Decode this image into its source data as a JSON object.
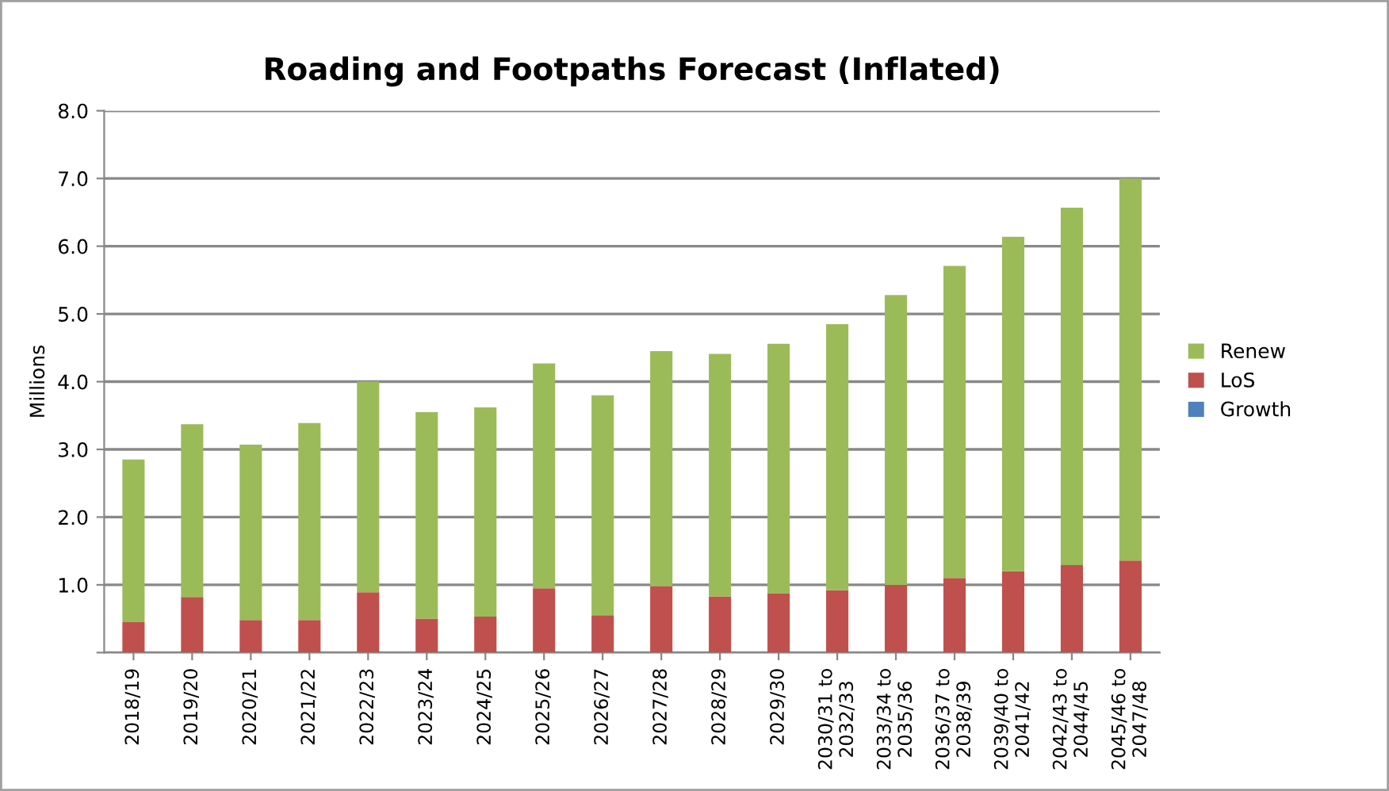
{
  "chart_data": {
    "type": "bar",
    "title": "Roading and Footpaths Forecast (Inflated)",
    "ylabel": "Millions",
    "stacked": true,
    "categories": [
      "2018/19",
      "2019/20",
      "2020/21",
      "2021/22",
      "2022/23",
      "2023/24",
      "2024/25",
      "2025/26",
      "2026/27",
      "2027/28",
      "2028/29",
      "2029/30",
      "2030/31 to\n2032/33",
      "2033/34 to\n2035/36",
      "2036/37 to\n2038/39",
      "2039/40 to\n2041/42",
      "2042/43 to\n2044/45",
      "2045/46 to\n2047/48"
    ],
    "series": [
      {
        "name": "Growth",
        "color": "#4f81bd",
        "values": [
          0,
          0,
          0,
          0,
          0,
          0,
          0,
          0,
          0,
          0,
          0,
          0,
          0,
          0,
          0,
          0,
          0,
          0
        ]
      },
      {
        "name": "LoS",
        "color": "#c0504d",
        "values": [
          0.45,
          0.82,
          0.48,
          0.48,
          0.89,
          0.5,
          0.53,
          0.95,
          0.55,
          0.98,
          0.83,
          0.87,
          0.92,
          1.0,
          1.1,
          1.2,
          1.29,
          1.36
        ]
      },
      {
        "name": "Renew",
        "color": "#9bbb59",
        "values": [
          2.4,
          2.55,
          2.59,
          2.91,
          3.11,
          3.05,
          3.09,
          3.32,
          3.25,
          3.47,
          3.58,
          3.69,
          3.93,
          4.28,
          4.61,
          4.94,
          5.28,
          5.64
        ]
      }
    ],
    "ylim": [
      0,
      8
    ],
    "yticks": [
      {
        "value": 0,
        "label": null
      },
      {
        "value": 1,
        "label": "1.0"
      },
      {
        "value": 2,
        "label": "2.0"
      },
      {
        "value": 3,
        "label": "3.0"
      },
      {
        "value": 4,
        "label": "4.0"
      },
      {
        "value": 5,
        "label": "5.0"
      },
      {
        "value": 6,
        "label": "6.0"
      },
      {
        "value": 7,
        "label": "7.0"
      },
      {
        "value": 8,
        "label": "8.0"
      }
    ],
    "grid": "y",
    "legend": "right"
  }
}
